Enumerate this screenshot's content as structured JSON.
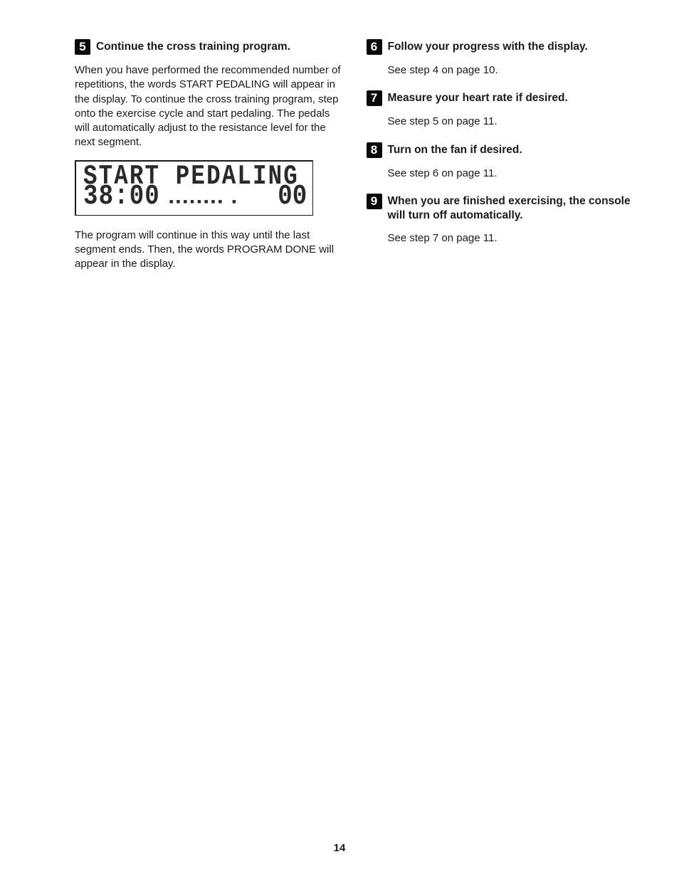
{
  "page_number": "14",
  "colors": {
    "text": "#1a1a1a",
    "background": "#ffffff",
    "step_badge_bg": "#0a0a0a",
    "step_badge_fg": "#ffffff",
    "lcd_border": "#1a1a1a",
    "lcd_text": "#2a2a2a"
  },
  "typography": {
    "body_font": "Arial",
    "body_size_pt": 11,
    "title_weight": "bold",
    "lcd_font": "segment-style monospace"
  },
  "left_column": {
    "step5": {
      "num": "5",
      "title": "Continue the cross training program.",
      "para1": "When you have performed the recommended number of repetitions, the words START PEDALING will appear in the display. To continue the cross training program, step onto the exercise cycle and start pedaling. The pedals will automatically adjust to the resistance level for the next segment.",
      "lcd": {
        "line1": "START PEDALING",
        "line2_left": "38:00",
        "line2_dashes": "▪▪▪▪▪▪▪▪ ▪",
        "line2_right": "00"
      },
      "para2": "The program will continue in this way until the last segment ends. Then, the words PROGRAM DONE will appear in the display."
    }
  },
  "right_column": {
    "step6": {
      "num": "6",
      "title": "Follow your progress with the display.",
      "body": "See step 4 on page 10."
    },
    "step7": {
      "num": "7",
      "title": "Measure your heart rate if desired.",
      "body": "See step 5 on page 11."
    },
    "step8": {
      "num": "8",
      "title": "Turn on the fan if desired.",
      "body": "See step 6 on page 11."
    },
    "step9": {
      "num": "9",
      "title": "When you are finished exercising, the console will turn off automatically.",
      "body": "See step 7 on page 11."
    }
  }
}
